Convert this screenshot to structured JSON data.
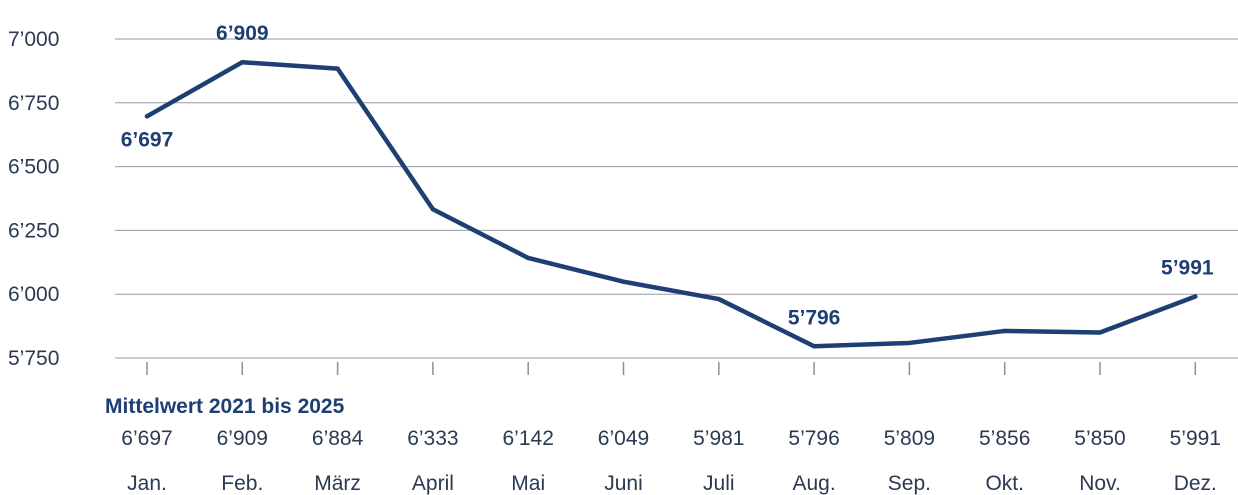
{
  "chart_data": {
    "type": "line",
    "categories": [
      "Jan.",
      "Feb.",
      "März",
      "April",
      "Mai",
      "Juni",
      "Juli",
      "Aug.",
      "Sep.",
      "Okt.",
      "Nov.",
      "Dez."
    ],
    "values": [
      6697,
      6909,
      6884,
      6333,
      6142,
      6049,
      5981,
      5796,
      5809,
      5856,
      5850,
      5991
    ],
    "value_labels": [
      "6’697",
      "6’909",
      "6’884",
      "6’333",
      "6’142",
      "6’049",
      "5’981",
      "5’796",
      "5’809",
      "5’856",
      "5’850",
      "5’991"
    ],
    "highlighted_labels": [
      {
        "index": 0,
        "text": "6’697"
      },
      {
        "index": 1,
        "text": "6’909"
      },
      {
        "index": 7,
        "text": "5’796"
      },
      {
        "index": 11,
        "text": "5’991"
      }
    ],
    "yticks": [
      5750,
      6000,
      6250,
      6500,
      6750,
      7000
    ],
    "ytick_labels": [
      "5’750",
      "6’000",
      "6’250",
      "6’500",
      "6’750",
      "7’000"
    ],
    "ylim": [
      5750,
      7000
    ],
    "grid": "horizontal",
    "table_header": "Mittelwert 2021 bis 2025",
    "series_color": "#1e3f73",
    "title": "",
    "xlabel": "",
    "ylabel": ""
  }
}
